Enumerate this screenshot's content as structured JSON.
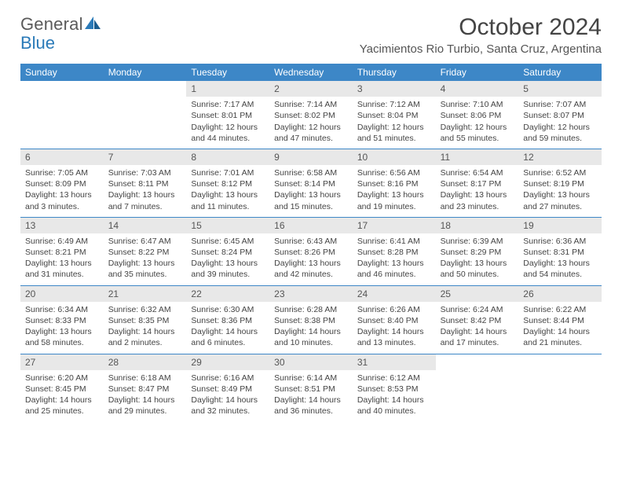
{
  "brand": {
    "part1": "General",
    "part2": "Blue"
  },
  "title": "October 2024",
  "location": "Yacimientos Rio Turbio, Santa Cruz, Argentina",
  "colors": {
    "header_bg": "#3d87c7",
    "header_text": "#ffffff",
    "daynum_bg": "#e8e8e8",
    "text": "#444444",
    "divider": "#3d87c7",
    "logo_gray": "#5a5a5a",
    "logo_blue": "#2a7ab8"
  },
  "day_names": [
    "Sunday",
    "Monday",
    "Tuesday",
    "Wednesday",
    "Thursday",
    "Friday",
    "Saturday"
  ],
  "weeks": [
    [
      null,
      null,
      {
        "n": "1",
        "sr": "7:17 AM",
        "ss": "8:01 PM",
        "dl": "12 hours and 44 minutes."
      },
      {
        "n": "2",
        "sr": "7:14 AM",
        "ss": "8:02 PM",
        "dl": "12 hours and 47 minutes."
      },
      {
        "n": "3",
        "sr": "7:12 AM",
        "ss": "8:04 PM",
        "dl": "12 hours and 51 minutes."
      },
      {
        "n": "4",
        "sr": "7:10 AM",
        "ss": "8:06 PM",
        "dl": "12 hours and 55 minutes."
      },
      {
        "n": "5",
        "sr": "7:07 AM",
        "ss": "8:07 PM",
        "dl": "12 hours and 59 minutes."
      }
    ],
    [
      {
        "n": "6",
        "sr": "7:05 AM",
        "ss": "8:09 PM",
        "dl": "13 hours and 3 minutes."
      },
      {
        "n": "7",
        "sr": "7:03 AM",
        "ss": "8:11 PM",
        "dl": "13 hours and 7 minutes."
      },
      {
        "n": "8",
        "sr": "7:01 AM",
        "ss": "8:12 PM",
        "dl": "13 hours and 11 minutes."
      },
      {
        "n": "9",
        "sr": "6:58 AM",
        "ss": "8:14 PM",
        "dl": "13 hours and 15 minutes."
      },
      {
        "n": "10",
        "sr": "6:56 AM",
        "ss": "8:16 PM",
        "dl": "13 hours and 19 minutes."
      },
      {
        "n": "11",
        "sr": "6:54 AM",
        "ss": "8:17 PM",
        "dl": "13 hours and 23 minutes."
      },
      {
        "n": "12",
        "sr": "6:52 AM",
        "ss": "8:19 PM",
        "dl": "13 hours and 27 minutes."
      }
    ],
    [
      {
        "n": "13",
        "sr": "6:49 AM",
        "ss": "8:21 PM",
        "dl": "13 hours and 31 minutes."
      },
      {
        "n": "14",
        "sr": "6:47 AM",
        "ss": "8:22 PM",
        "dl": "13 hours and 35 minutes."
      },
      {
        "n": "15",
        "sr": "6:45 AM",
        "ss": "8:24 PM",
        "dl": "13 hours and 39 minutes."
      },
      {
        "n": "16",
        "sr": "6:43 AM",
        "ss": "8:26 PM",
        "dl": "13 hours and 42 minutes."
      },
      {
        "n": "17",
        "sr": "6:41 AM",
        "ss": "8:28 PM",
        "dl": "13 hours and 46 minutes."
      },
      {
        "n": "18",
        "sr": "6:39 AM",
        "ss": "8:29 PM",
        "dl": "13 hours and 50 minutes."
      },
      {
        "n": "19",
        "sr": "6:36 AM",
        "ss": "8:31 PM",
        "dl": "13 hours and 54 minutes."
      }
    ],
    [
      {
        "n": "20",
        "sr": "6:34 AM",
        "ss": "8:33 PM",
        "dl": "13 hours and 58 minutes."
      },
      {
        "n": "21",
        "sr": "6:32 AM",
        "ss": "8:35 PM",
        "dl": "14 hours and 2 minutes."
      },
      {
        "n": "22",
        "sr": "6:30 AM",
        "ss": "8:36 PM",
        "dl": "14 hours and 6 minutes."
      },
      {
        "n": "23",
        "sr": "6:28 AM",
        "ss": "8:38 PM",
        "dl": "14 hours and 10 minutes."
      },
      {
        "n": "24",
        "sr": "6:26 AM",
        "ss": "8:40 PM",
        "dl": "14 hours and 13 minutes."
      },
      {
        "n": "25",
        "sr": "6:24 AM",
        "ss": "8:42 PM",
        "dl": "14 hours and 17 minutes."
      },
      {
        "n": "26",
        "sr": "6:22 AM",
        "ss": "8:44 PM",
        "dl": "14 hours and 21 minutes."
      }
    ],
    [
      {
        "n": "27",
        "sr": "6:20 AM",
        "ss": "8:45 PM",
        "dl": "14 hours and 25 minutes."
      },
      {
        "n": "28",
        "sr": "6:18 AM",
        "ss": "8:47 PM",
        "dl": "14 hours and 29 minutes."
      },
      {
        "n": "29",
        "sr": "6:16 AM",
        "ss": "8:49 PM",
        "dl": "14 hours and 32 minutes."
      },
      {
        "n": "30",
        "sr": "6:14 AM",
        "ss": "8:51 PM",
        "dl": "14 hours and 36 minutes."
      },
      {
        "n": "31",
        "sr": "6:12 AM",
        "ss": "8:53 PM",
        "dl": "14 hours and 40 minutes."
      },
      null,
      null
    ]
  ],
  "labels": {
    "sunrise": "Sunrise: ",
    "sunset": "Sunset: ",
    "daylight": "Daylight: "
  }
}
